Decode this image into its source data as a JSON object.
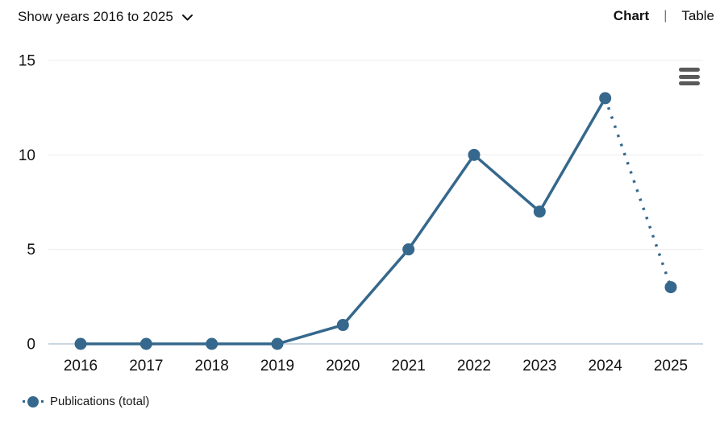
{
  "header": {
    "show_years_label": "Show years 2016 to 2025",
    "chart_tab": "Chart",
    "separator": "|",
    "table_tab": "Table"
  },
  "icons": {
    "dropdown_chevron": "chevron-down",
    "context_menu": "hamburger-menu"
  },
  "chart_data": {
    "type": "line",
    "title": "",
    "xlabel": "",
    "ylabel": "",
    "categories": [
      "2016",
      "2017",
      "2018",
      "2019",
      "2020",
      "2021",
      "2022",
      "2023",
      "2024",
      "2025"
    ],
    "series": [
      {
        "name": "Publications (total)",
        "values": [
          0,
          0,
          0,
          0,
          1,
          5,
          10,
          7,
          13,
          3
        ],
        "last_segment_style": "dotted"
      }
    ],
    "ylim": [
      0,
      15
    ],
    "yticks": [
      0,
      5,
      10,
      15
    ],
    "grid": true,
    "legend_position": "bottom-left",
    "colors": {
      "line": "#35688c",
      "grid": "#ececec",
      "axis": "#c9d6e2",
      "tick_text": "#111111"
    }
  }
}
